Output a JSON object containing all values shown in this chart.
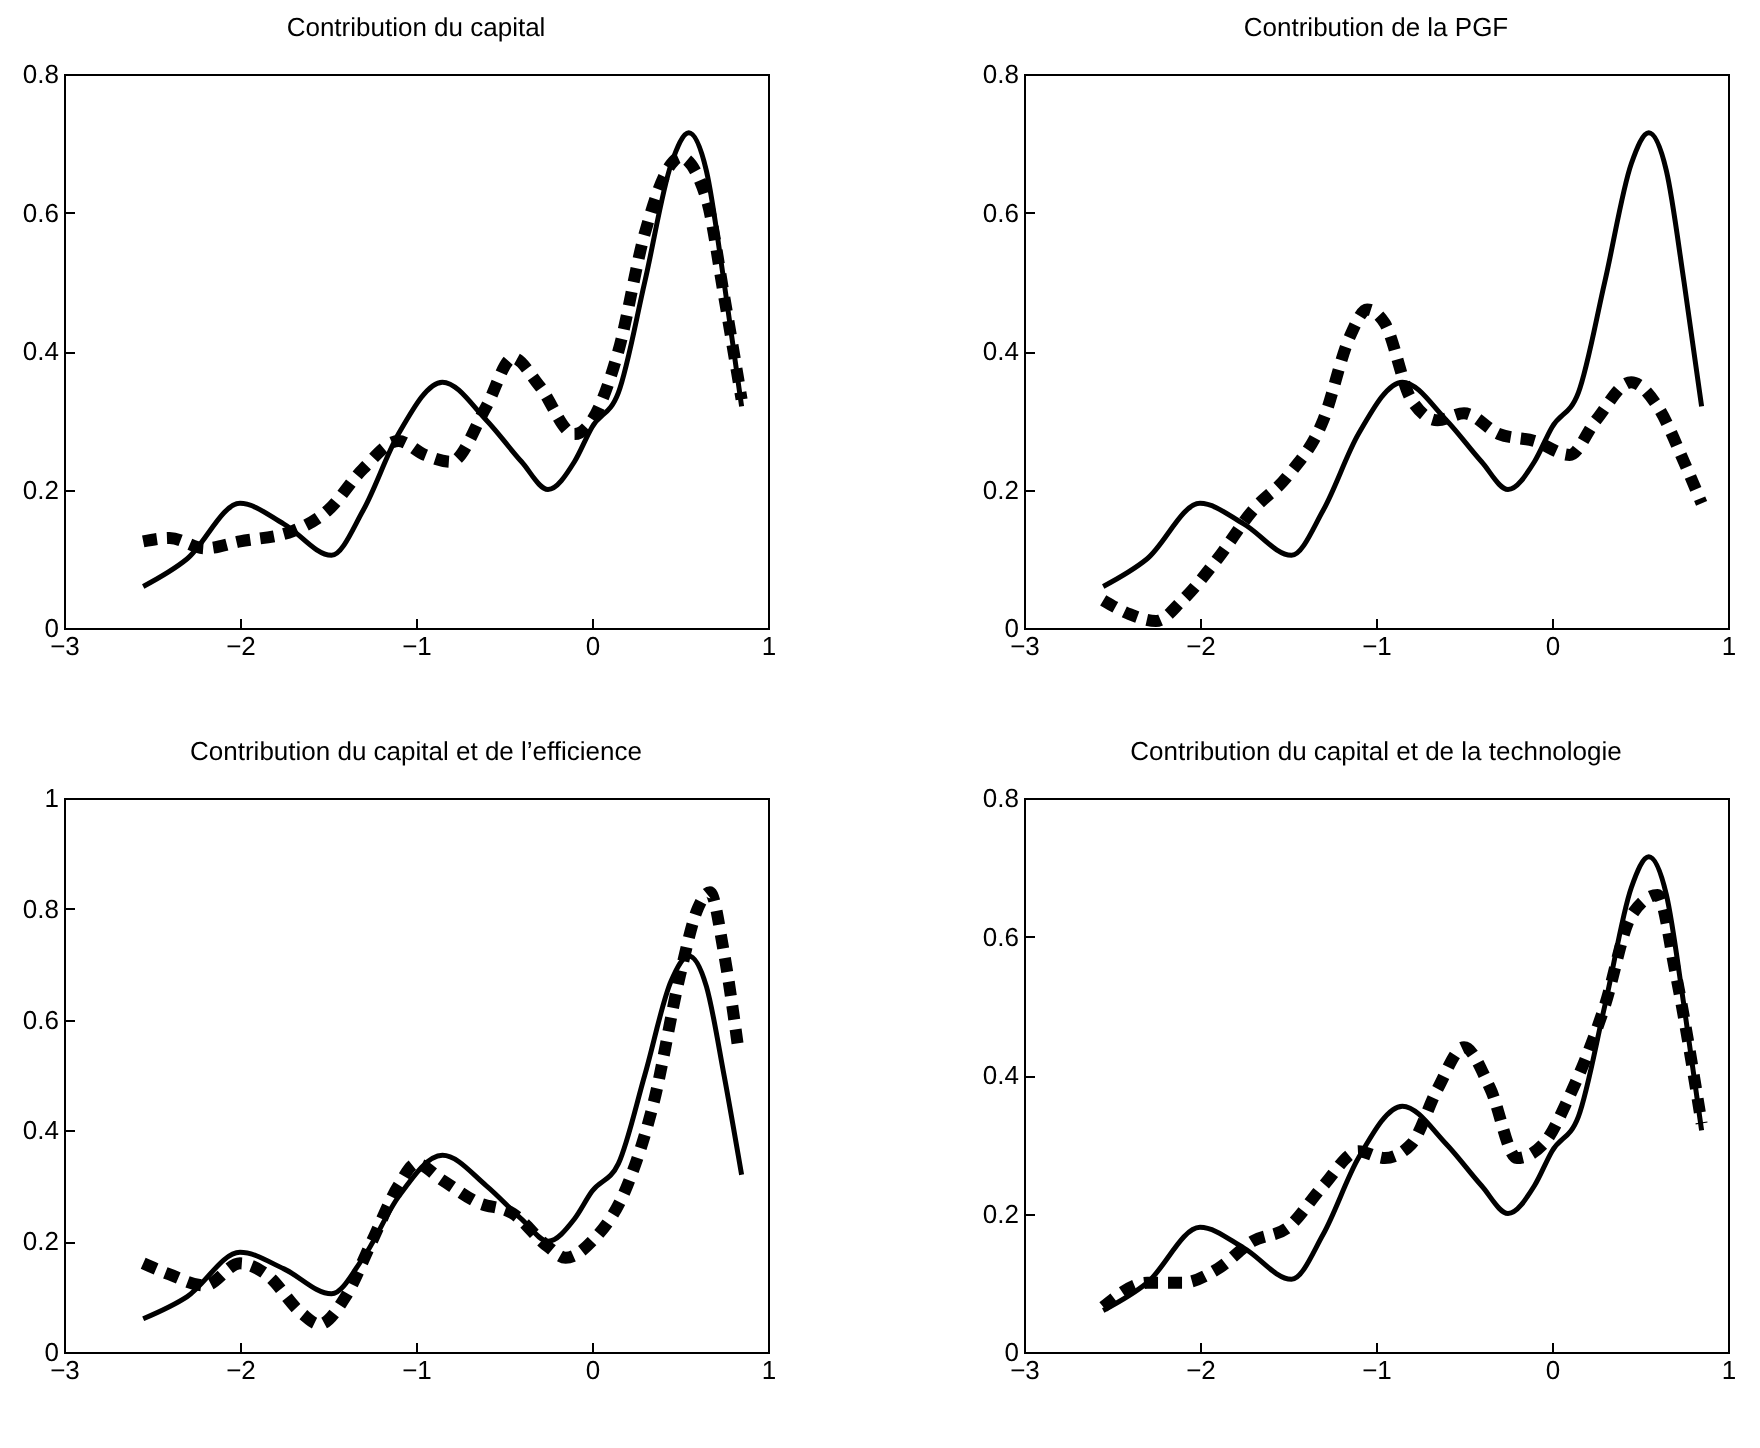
{
  "chart_data": [
    {
      "type": "line",
      "title": "Contribution du capital",
      "xlim": [
        -3,
        1
      ],
      "xticks": [
        -3,
        -2,
        -1,
        0,
        1
      ],
      "ylim": [
        0,
        0.8
      ],
      "yticks": [
        0,
        0.2,
        0.4,
        0.6,
        0.8
      ],
      "grid": false,
      "series": [
        {
          "color": "#000000",
          "line_style": "solid",
          "x": [
            -2.55,
            -2.3,
            -2.0,
            -1.75,
            -1.48,
            -1.3,
            -1.1,
            -0.85,
            -0.6,
            -0.4,
            -0.25,
            -0.1,
            0,
            0.15,
            0.3,
            0.45,
            0.55,
            0.65,
            0.75,
            0.85
          ],
          "values": [
            0.06,
            0.1,
            0.18,
            0.15,
            0.105,
            0.17,
            0.28,
            0.355,
            0.3,
            0.24,
            0.2,
            0.24,
            0.29,
            0.34,
            0.5,
            0.67,
            0.715,
            0.66,
            0.5,
            0.32
          ]
        },
        {
          "color": "#000000",
          "line_style": "dashed",
          "x": [
            -2.55,
            -2.4,
            -2.2,
            -2.0,
            -1.7,
            -1.5,
            -1.3,
            -1.1,
            -0.95,
            -0.8,
            -0.6,
            -0.45,
            -0.3,
            -0.1,
            0,
            0.15,
            0.3,
            0.45,
            0.5,
            0.65,
            0.75,
            0.85
          ],
          "values": [
            0.125,
            0.13,
            0.115,
            0.125,
            0.14,
            0.17,
            0.23,
            0.27,
            0.25,
            0.24,
            0.32,
            0.39,
            0.35,
            0.28,
            0.3,
            0.4,
            0.57,
            0.67,
            0.68,
            0.62,
            0.48,
            0.33
          ]
        }
      ]
    },
    {
      "type": "line",
      "title": "Contribution de la PGF",
      "xlim": [
        -3,
        1
      ],
      "xticks": [
        -3,
        -2,
        -1,
        0,
        1
      ],
      "ylim": [
        0,
        0.8
      ],
      "yticks": [
        0,
        0.2,
        0.4,
        0.6,
        0.8
      ],
      "grid": false,
      "series": [
        {
          "color": "#000000",
          "line_style": "solid",
          "x": [
            -2.55,
            -2.3,
            -2.0,
            -1.75,
            -1.48,
            -1.3,
            -1.1,
            -0.85,
            -0.6,
            -0.4,
            -0.25,
            -0.1,
            0,
            0.15,
            0.3,
            0.45,
            0.55,
            0.65,
            0.75,
            0.85
          ],
          "values": [
            0.06,
            0.1,
            0.18,
            0.15,
            0.105,
            0.17,
            0.28,
            0.355,
            0.3,
            0.24,
            0.2,
            0.24,
            0.29,
            0.34,
            0.5,
            0.67,
            0.715,
            0.66,
            0.5,
            0.32
          ]
        },
        {
          "color": "#000000",
          "line_style": "dashed",
          "x": [
            -2.55,
            -2.4,
            -2.25,
            -2.1,
            -1.9,
            -1.7,
            -1.5,
            -1.3,
            -1.15,
            -1.05,
            -0.95,
            -0.8,
            -0.65,
            -0.5,
            -0.3,
            -0.1,
            0.1,
            0.25,
            0.45,
            0.6,
            0.75,
            0.85
          ],
          "values": [
            0.04,
            0.02,
            0.01,
            0.04,
            0.1,
            0.17,
            0.22,
            0.3,
            0.42,
            0.46,
            0.44,
            0.33,
            0.3,
            0.31,
            0.28,
            0.27,
            0.25,
            0.3,
            0.355,
            0.32,
            0.24,
            0.18
          ]
        }
      ]
    },
    {
      "type": "line",
      "title": "Contribution du capital et de l’efficience",
      "xlim": [
        -3,
        1
      ],
      "xticks": [
        -3,
        -2,
        -1,
        0,
        1
      ],
      "ylim": [
        0,
        1
      ],
      "yticks": [
        0,
        0.2,
        0.4,
        0.6,
        0.8,
        1
      ],
      "grid": false,
      "series": [
        {
          "color": "#000000",
          "line_style": "solid",
          "x": [
            -2.55,
            -2.3,
            -2.0,
            -1.75,
            -1.48,
            -1.3,
            -1.1,
            -0.85,
            -0.6,
            -0.4,
            -0.25,
            -0.1,
            0,
            0.15,
            0.3,
            0.45,
            0.55,
            0.65,
            0.75,
            0.85
          ],
          "values": [
            0.06,
            0.1,
            0.18,
            0.15,
            0.105,
            0.17,
            0.28,
            0.355,
            0.3,
            0.24,
            0.2,
            0.24,
            0.29,
            0.34,
            0.5,
            0.67,
            0.715,
            0.66,
            0.5,
            0.32
          ]
        },
        {
          "color": "#000000",
          "line_style": "dashed",
          "x": [
            -2.55,
            -2.4,
            -2.2,
            -2.0,
            -1.85,
            -1.65,
            -1.55,
            -1.4,
            -1.25,
            -1.1,
            -1.0,
            -0.85,
            -0.65,
            -0.45,
            -0.25,
            -0.15,
            0,
            0.2,
            0.35,
            0.5,
            0.6,
            0.67,
            0.75,
            0.83
          ],
          "values": [
            0.16,
            0.14,
            0.12,
            0.16,
            0.14,
            0.07,
            0.05,
            0.1,
            0.2,
            0.3,
            0.34,
            0.31,
            0.27,
            0.25,
            0.19,
            0.17,
            0.2,
            0.3,
            0.45,
            0.68,
            0.8,
            0.83,
            0.72,
            0.55
          ]
        }
      ]
    },
    {
      "type": "line",
      "title": "Contribution du capital et de la technologie",
      "xlim": [
        -3,
        1
      ],
      "xticks": [
        -3,
        -2,
        -1,
        0,
        1
      ],
      "ylim": [
        0,
        0.8
      ],
      "yticks": [
        0,
        0.2,
        0.4,
        0.6,
        0.8
      ],
      "grid": false,
      "series": [
        {
          "color": "#000000",
          "line_style": "solid",
          "x": [
            -2.55,
            -2.3,
            -2.0,
            -1.75,
            -1.48,
            -1.3,
            -1.1,
            -0.85,
            -0.6,
            -0.4,
            -0.25,
            -0.1,
            0,
            0.15,
            0.3,
            0.45,
            0.55,
            0.65,
            0.75,
            0.85
          ],
          "values": [
            0.06,
            0.1,
            0.18,
            0.15,
            0.105,
            0.17,
            0.28,
            0.355,
            0.3,
            0.24,
            0.2,
            0.24,
            0.29,
            0.34,
            0.5,
            0.67,
            0.715,
            0.66,
            0.5,
            0.32
          ]
        },
        {
          "color": "#000000",
          "line_style": "dashed",
          "x": [
            -2.55,
            -2.3,
            -2.1,
            -1.9,
            -1.7,
            -1.5,
            -1.3,
            -1.1,
            -0.95,
            -0.8,
            -0.65,
            -0.5,
            -0.35,
            -0.2,
            -0.05,
            0.1,
            0.3,
            0.45,
            0.6,
            0.7,
            0.85
          ],
          "values": [
            0.065,
            0.1,
            0.1,
            0.12,
            0.16,
            0.18,
            0.24,
            0.29,
            0.28,
            0.3,
            0.38,
            0.44,
            0.38,
            0.28,
            0.3,
            0.37,
            0.5,
            0.63,
            0.66,
            0.55,
            0.33
          ]
        }
      ]
    }
  ]
}
